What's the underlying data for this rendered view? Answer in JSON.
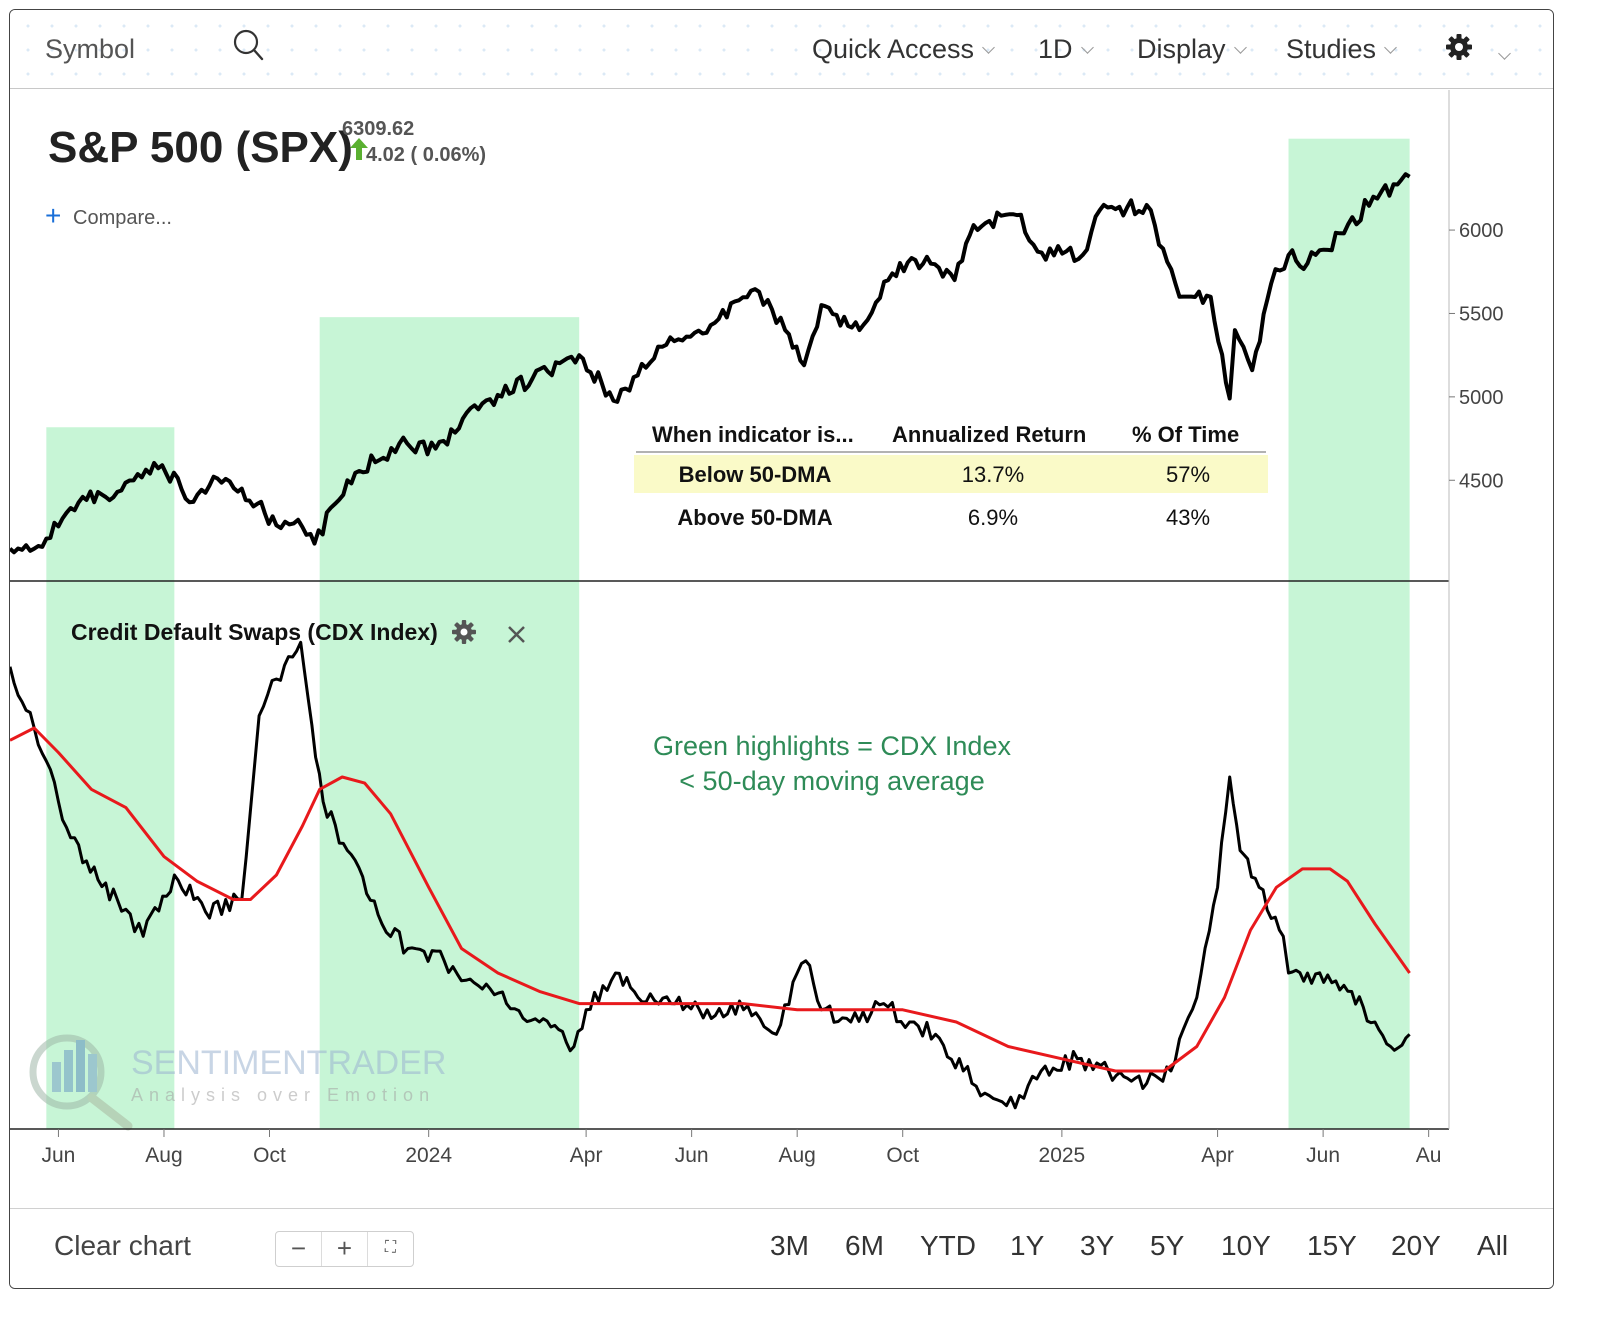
{
  "toolbar": {
    "symbol_label": "Symbol",
    "quick_access": "Quick Access",
    "interval": "1D",
    "display": "Display",
    "studies": "Studies"
  },
  "header": {
    "title": "S&P 500 (SPX)",
    "price": "6309.62",
    "change": "4.02 ( 0.06%)",
    "compare_label": "Compare..."
  },
  "table": {
    "headers": [
      "When indicator is...",
      "Annualized Return",
      "% Of Time"
    ],
    "rows": [
      [
        "Below 50-DMA",
        "13.7%",
        "57%"
      ],
      [
        "Above 50-DMA",
        "6.9%",
        "43%"
      ]
    ]
  },
  "lower_panel": {
    "title": "Credit Default Swaps (CDX Index)",
    "annotation_line1": "Green highlights = CDX Index",
    "annotation_line2": "< 50-day moving average"
  },
  "watermark": {
    "brand": "SENTIMENTRADER",
    "tagline": "Analysis over Emotion"
  },
  "bottombar": {
    "clear_chart": "Clear chart",
    "zoom_out": "−",
    "zoom_in": "+",
    "ranges": [
      "3M",
      "6M",
      "YTD",
      "1Y",
      "3Y",
      "5Y",
      "10Y",
      "15Y",
      "20Y",
      "All"
    ]
  },
  "colors": {
    "highlight": "#c7f5d6",
    "price_line": "#000000",
    "ma_line": "#e8191c",
    "annotation": "#2e8b57",
    "up_arrow": "#5ab031",
    "table_highlight": "#fafac8"
  },
  "chart_data": [
    {
      "type": "line",
      "title": "S&P 500 (SPX)",
      "y_ticks": [
        4500,
        5000,
        5500,
        6000
      ],
      "ylim": [
        3950,
        6480
      ],
      "x_ticks": [
        "Jun",
        "Aug",
        "Oct",
        "2024",
        "Apr",
        "Jun",
        "Aug",
        "Oct",
        "2025",
        "Apr",
        "Jun",
        "Au"
      ],
      "x_tick_dates": [
        "2023-06-01",
        "2023-08-01",
        "2023-10-01",
        "2024-01-01",
        "2024-04-01",
        "2024-06-01",
        "2024-08-01",
        "2024-10-01",
        "2025-01-01",
        "2025-04-01",
        "2025-06-01",
        "2025-08-01"
      ],
      "xlim": [
        "2023-05-04",
        "2025-07-27"
      ],
      "highlights": [
        [
          "2023-05-25",
          "2023-08-07"
        ],
        [
          "2023-10-30",
          "2024-03-28"
        ],
        [
          "2025-05-12",
          "2025-07-21"
        ]
      ],
      "series": [
        {
          "x": [
            "2023-05-04",
            "2023-05-25",
            "2023-06-15",
            "2023-07-05",
            "2023-07-31",
            "2023-08-18",
            "2023-09-01",
            "2023-09-15",
            "2023-10-05",
            "2023-10-20",
            "2023-10-27",
            "2023-11-15",
            "2023-12-15",
            "2024-01-05",
            "2024-02-01",
            "2024-03-01",
            "2024-03-28",
            "2024-04-19",
            "2024-05-15",
            "2024-06-12",
            "2024-07-10",
            "2024-07-25",
            "2024-08-05",
            "2024-08-15",
            "2024-09-06",
            "2024-09-25",
            "2024-10-15",
            "2024-10-31",
            "2024-11-11",
            "2024-12-06",
            "2024-12-18",
            "2025-01-13",
            "2025-01-23",
            "2025-02-19",
            "2025-03-10",
            "2025-03-28",
            "2025-04-08",
            "2025-04-11",
            "2025-04-21",
            "2025-05-02",
            "2025-05-12",
            "2025-05-23",
            "2025-06-13",
            "2025-06-30",
            "2025-07-21"
          ],
          "values": [
            4090,
            4150,
            4400,
            4430,
            4590,
            4370,
            4510,
            4450,
            4230,
            4220,
            4120,
            4500,
            4720,
            4690,
            4960,
            5110,
            5250,
            4970,
            5300,
            5430,
            5630,
            5400,
            5190,
            5550,
            5400,
            5740,
            5840,
            5700,
            6030,
            6090,
            5870,
            5850,
            6120,
            6150,
            5600,
            5600,
            4990,
            5400,
            5160,
            5680,
            5850,
            5800,
            5980,
            6200,
            6320
          ]
        }
      ]
    },
    {
      "type": "line",
      "title": "Credit Default Swaps (CDX Index)",
      "series": [
        {
          "name": "CDX Index",
          "x": [
            "2023-05-04",
            "2023-05-18",
            "2023-06-01",
            "2023-06-15",
            "2023-07-05",
            "2023-07-20",
            "2023-08-07",
            "2023-08-25",
            "2023-09-15",
            "2023-09-25",
            "2023-10-05",
            "2023-10-19",
            "2023-11-01",
            "2023-11-15",
            "2023-12-05",
            "2023-12-20",
            "2024-01-10",
            "2024-01-25",
            "2024-02-15",
            "2024-03-05",
            "2024-03-25",
            "2024-04-01",
            "2024-04-18",
            "2024-05-01",
            "2024-05-20",
            "2024-06-10",
            "2024-07-01",
            "2024-07-20",
            "2024-08-01",
            "2024-08-06",
            "2024-08-15",
            "2024-09-01",
            "2024-09-20",
            "2024-10-05",
            "2024-10-20",
            "2024-11-05",
            "2024-11-20",
            "2024-12-05",
            "2024-12-20",
            "2025-01-10",
            "2025-01-28",
            "2025-02-19",
            "2025-03-05",
            "2025-03-20",
            "2025-04-01",
            "2025-04-08",
            "2025-04-14",
            "2025-04-25",
            "2025-05-09",
            "2025-05-12",
            "2025-05-23",
            "2025-06-13",
            "2025-07-01",
            "2025-07-10",
            "2025-07-21"
          ],
          "values": [
            80,
            70,
            58,
            48,
            42,
            36,
            46,
            40,
            42,
            72,
            78,
            84,
            58,
            50,
            38,
            34,
            32,
            29,
            25,
            22,
            18,
            24,
            30,
            26,
            25,
            24,
            24,
            20,
            30,
            32,
            24,
            22,
            25,
            22,
            20,
            14,
            10,
            8,
            14,
            16,
            14,
            12,
            14,
            26,
            44,
            62,
            50,
            44,
            36,
            30,
            30,
            28,
            22,
            18,
            20
          ]
        },
        {
          "name": "50-day moving average",
          "x": [
            "2023-05-04",
            "2023-05-18",
            "2023-06-01",
            "2023-06-20",
            "2023-07-10",
            "2023-08-01",
            "2023-08-20",
            "2023-09-10",
            "2023-09-20",
            "2023-10-05",
            "2023-10-20",
            "2023-10-30",
            "2023-11-12",
            "2023-11-25",
            "2023-12-10",
            "2024-01-01",
            "2024-01-20",
            "2024-02-10",
            "2024-03-05",
            "2024-03-28",
            "2024-05-01",
            "2024-06-01",
            "2024-07-01",
            "2024-08-01",
            "2024-09-01",
            "2024-10-01",
            "2024-11-01",
            "2024-12-01",
            "2025-01-01",
            "2025-02-01",
            "2025-03-01",
            "2025-03-20",
            "2025-04-05",
            "2025-04-20",
            "2025-05-05",
            "2025-05-20",
            "2025-06-05",
            "2025-06-15",
            "2025-07-01",
            "2025-07-21"
          ],
          "values": [
            68,
            70,
            66,
            60,
            57,
            49,
            45,
            42,
            42,
            46,
            54,
            60,
            62,
            61,
            56,
            44,
            34,
            30,
            27,
            25,
            25,
            25,
            25,
            24,
            24,
            24,
            22,
            18,
            16,
            14,
            14,
            18,
            26,
            37,
            44,
            47,
            47,
            45,
            38,
            30
          ]
        }
      ]
    }
  ]
}
